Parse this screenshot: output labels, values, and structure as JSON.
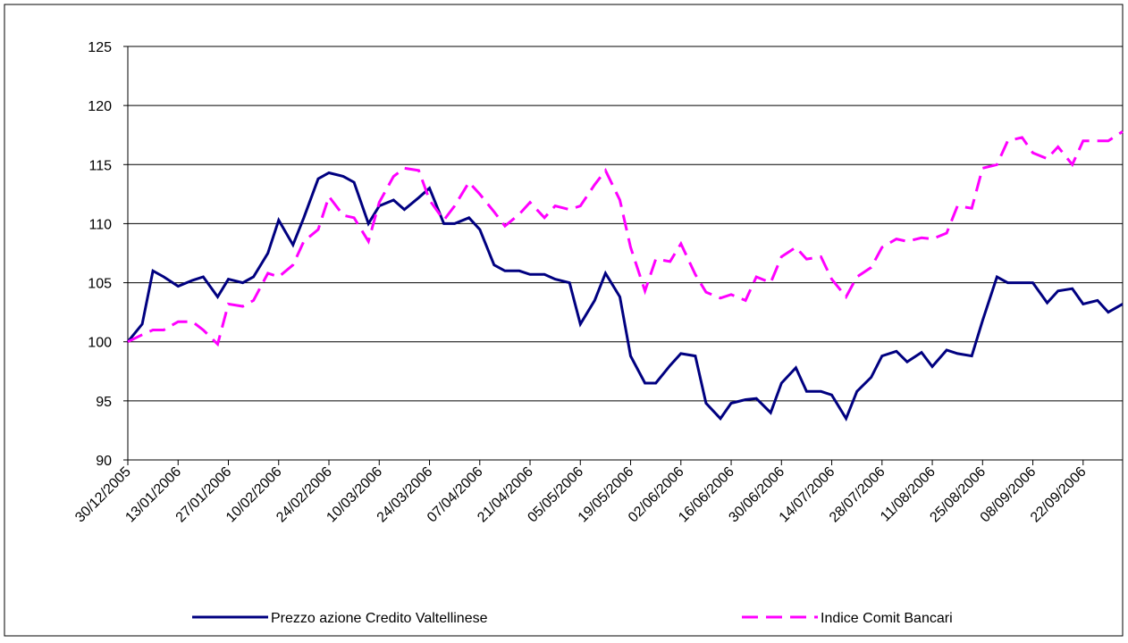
{
  "chart_data": {
    "type": "line",
    "x": [
      "30/12/2005",
      "03/01/2006",
      "06/01/2006",
      "09/01/2006",
      "13/01/2006",
      "17/01/2006",
      "20/01/2006",
      "24/01/2006",
      "27/01/2006",
      "31/01/2006",
      "03/02/2006",
      "07/02/2006",
      "10/02/2006",
      "14/02/2006",
      "17/02/2006",
      "21/02/2006",
      "24/02/2006",
      "28/02/2006",
      "03/03/2006",
      "07/03/2006",
      "10/03/2006",
      "14/03/2006",
      "17/03/2006",
      "21/03/2006",
      "24/03/2006",
      "28/03/2006",
      "31/03/2006",
      "04/04/2006",
      "07/04/2006",
      "11/04/2006",
      "14/04/2006",
      "18/04/2006",
      "21/04/2006",
      "25/04/2006",
      "28/04/2006",
      "02/05/2006",
      "05/05/2006",
      "09/05/2006",
      "12/05/2006",
      "16/05/2006",
      "19/05/2006",
      "23/05/2006",
      "26/05/2006",
      "30/05/2006",
      "02/06/2006",
      "06/06/2006",
      "09/06/2006",
      "13/06/2006",
      "16/06/2006",
      "20/06/2006",
      "23/06/2006",
      "27/06/2006",
      "30/06/2006",
      "04/07/2006",
      "07/07/2006",
      "11/07/2006",
      "14/07/2006",
      "18/07/2006",
      "21/07/2006",
      "25/07/2006",
      "28/07/2006",
      "01/08/2006",
      "04/08/2006",
      "08/08/2006",
      "11/08/2006",
      "15/08/2006",
      "18/08/2006",
      "22/08/2006",
      "25/08/2006",
      "29/08/2006",
      "01/09/2006",
      "05/09/2006",
      "08/09/2006",
      "12/09/2006",
      "15/09/2006",
      "19/09/2006",
      "22/09/2006",
      "26/09/2006",
      "29/09/2006",
      "03/10/2006"
    ],
    "series": [
      {
        "name": "Prezzo azione Credito Valtellinese",
        "color": "#000080",
        "dash": "solid",
        "values": [
          100,
          101.5,
          106,
          105.5,
          104.7,
          105.2,
          105.5,
          103.8,
          105.3,
          105,
          105.5,
          107.5,
          110.3,
          108.2,
          110.5,
          113.8,
          114.3,
          114,
          113.5,
          110,
          111.5,
          112,
          111.2,
          112.2,
          113,
          110,
          110,
          110.5,
          109.5,
          106.5,
          106,
          106,
          105.7,
          105.7,
          105.3,
          105,
          101.5,
          103.5,
          105.8,
          103.8,
          98.8,
          96.5,
          96.5,
          98,
          99,
          98.8,
          94.8,
          93.5,
          94.8,
          95.1,
          95.2,
          94,
          96.5,
          97.8,
          95.8,
          95.8,
          95.5,
          93.5,
          95.8,
          97,
          98.8,
          99.2,
          98.3,
          99.1,
          97.9,
          99.3,
          99,
          98.8,
          101.8,
          105.5,
          105,
          105,
          105,
          103.3,
          104.3,
          104.5,
          103.2,
          103.5,
          102.5,
          103.2
        ]
      },
      {
        "name": "Indice Comit Bancari",
        "color": "#ff00ff",
        "dash": "dashed",
        "values": [
          100,
          100.6,
          101,
          101,
          101.7,
          101.7,
          101,
          99.8,
          103.2,
          103,
          103.5,
          105.8,
          105.5,
          106.5,
          108.5,
          109.5,
          112.3,
          110.7,
          110.5,
          108.5,
          111.8,
          114,
          114.7,
          114.5,
          112,
          110.3,
          111.5,
          113.5,
          112.5,
          111,
          109.8,
          110.8,
          111.8,
          110.5,
          111.5,
          111.2,
          111.5,
          113.3,
          114.5,
          112,
          108,
          104.3,
          107,
          106.8,
          108.3,
          105.7,
          104.2,
          103.7,
          104,
          103.5,
          105.5,
          105,
          107.2,
          108,
          107,
          107.2,
          105.3,
          103.8,
          105.5,
          106.3,
          108,
          108.7,
          108.5,
          108.8,
          108.7,
          109.2,
          111.5,
          111.3,
          114.7,
          115,
          117,
          117.3,
          116,
          115.5,
          116.5,
          115,
          117,
          117,
          117,
          117.8
        ]
      }
    ],
    "xlim": [
      "30/12/2005",
      "03/10/2006"
    ],
    "xticks": [
      "30/12/2005",
      "13/01/2006",
      "27/01/2006",
      "10/02/2006",
      "24/02/2006",
      "10/03/2006",
      "24/03/2006",
      "07/04/2006",
      "21/04/2006",
      "05/05/2006",
      "19/05/2006",
      "02/06/2006",
      "16/06/2006",
      "30/06/2006",
      "14/07/2006",
      "28/07/2006",
      "11/08/2006",
      "25/08/2006",
      "08/09/2006",
      "22/09/2006"
    ],
    "ylim": [
      90,
      125
    ],
    "yticks": [
      90,
      95,
      100,
      105,
      110,
      115,
      120,
      125
    ],
    "grid": true,
    "legend": "bottom"
  }
}
